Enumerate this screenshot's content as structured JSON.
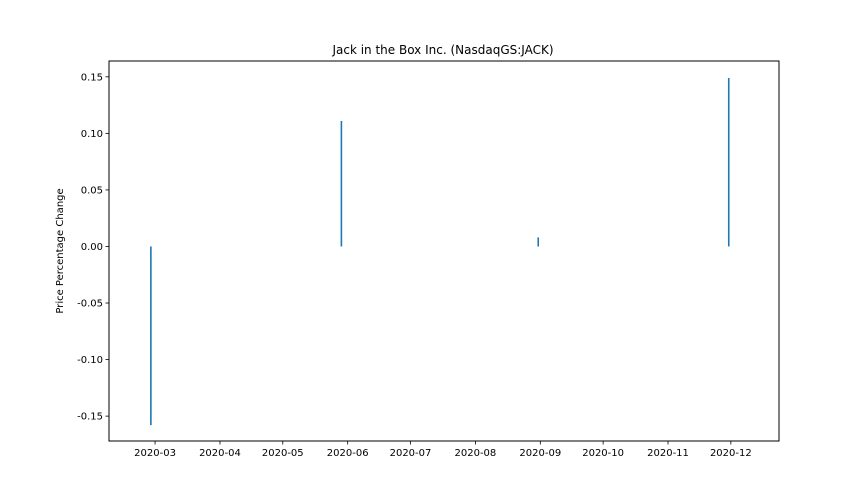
{
  "chart_data": {
    "type": "bar",
    "title": "Jack in the Box Inc. (NasdaqGS:JACK)",
    "xlabel": "",
    "ylabel": "Price Percentage Change",
    "x_ticks": [
      "2020-03",
      "2020-04",
      "2020-05",
      "2020-06",
      "2020-07",
      "2020-08",
      "2020-09",
      "2020-10",
      "2020-11",
      "2020-12"
    ],
    "x_range": [
      "2020-02-08",
      "2020-12-24"
    ],
    "ylim": [
      -0.172,
      0.164
    ],
    "y_ticks": [
      "-0.15",
      "-0.10",
      "-0.05",
      "0.00",
      "0.05",
      "0.10",
      "0.15"
    ],
    "grid": false,
    "series": [
      {
        "color": "#1f77b4",
        "points": [
          {
            "x": "2020-02-28",
            "y": -0.158
          },
          {
            "x": "2020-05-29",
            "y": 0.111
          },
          {
            "x": "2020-08-31",
            "y": 0.008
          },
          {
            "x": "2020-11-30",
            "y": 0.149
          }
        ]
      }
    ]
  }
}
